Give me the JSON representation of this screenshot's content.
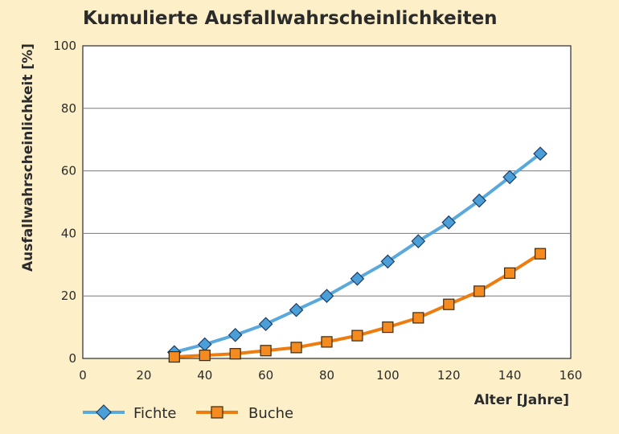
{
  "chart_data": {
    "type": "line",
    "title": "Kumulierte Ausfallwahrscheinlichkeiten",
    "xlabel": "Alter [Jahre]",
    "ylabel": "Ausfallwahrscheinlichkeit [%]",
    "xlim": [
      0,
      160
    ],
    "ylim": [
      0,
      100
    ],
    "xticks": [
      0,
      20,
      40,
      60,
      80,
      100,
      120,
      140,
      160
    ],
    "yticks": [
      0,
      20,
      40,
      60,
      80,
      100
    ],
    "grid": "horizontal",
    "legend_position": "bottom-left",
    "series": [
      {
        "name": "Fichte",
        "color": "#5aa9dc",
        "marker": "diamond",
        "marker_color": "#4a9fd8",
        "x": [
          30,
          40,
          50,
          60,
          70,
          80,
          90,
          100,
          110,
          120,
          130,
          140,
          150
        ],
        "values": [
          2,
          4.5,
          7.5,
          11,
          15.5,
          20,
          25.5,
          31,
          37.5,
          43.5,
          50.5,
          58,
          65.5
        ]
      },
      {
        "name": "Buche",
        "color": "#ee7d11",
        "marker": "square",
        "marker_color": "#f58a1f",
        "x": [
          30,
          40,
          50,
          60,
          70,
          80,
          90,
          100,
          110,
          120,
          130,
          140,
          150
        ],
        "values": [
          0.5,
          1,
          1.5,
          2.5,
          3.5,
          5.3,
          7.3,
          10,
          13,
          17.3,
          21.5,
          27.3,
          33.5
        ]
      }
    ]
  }
}
